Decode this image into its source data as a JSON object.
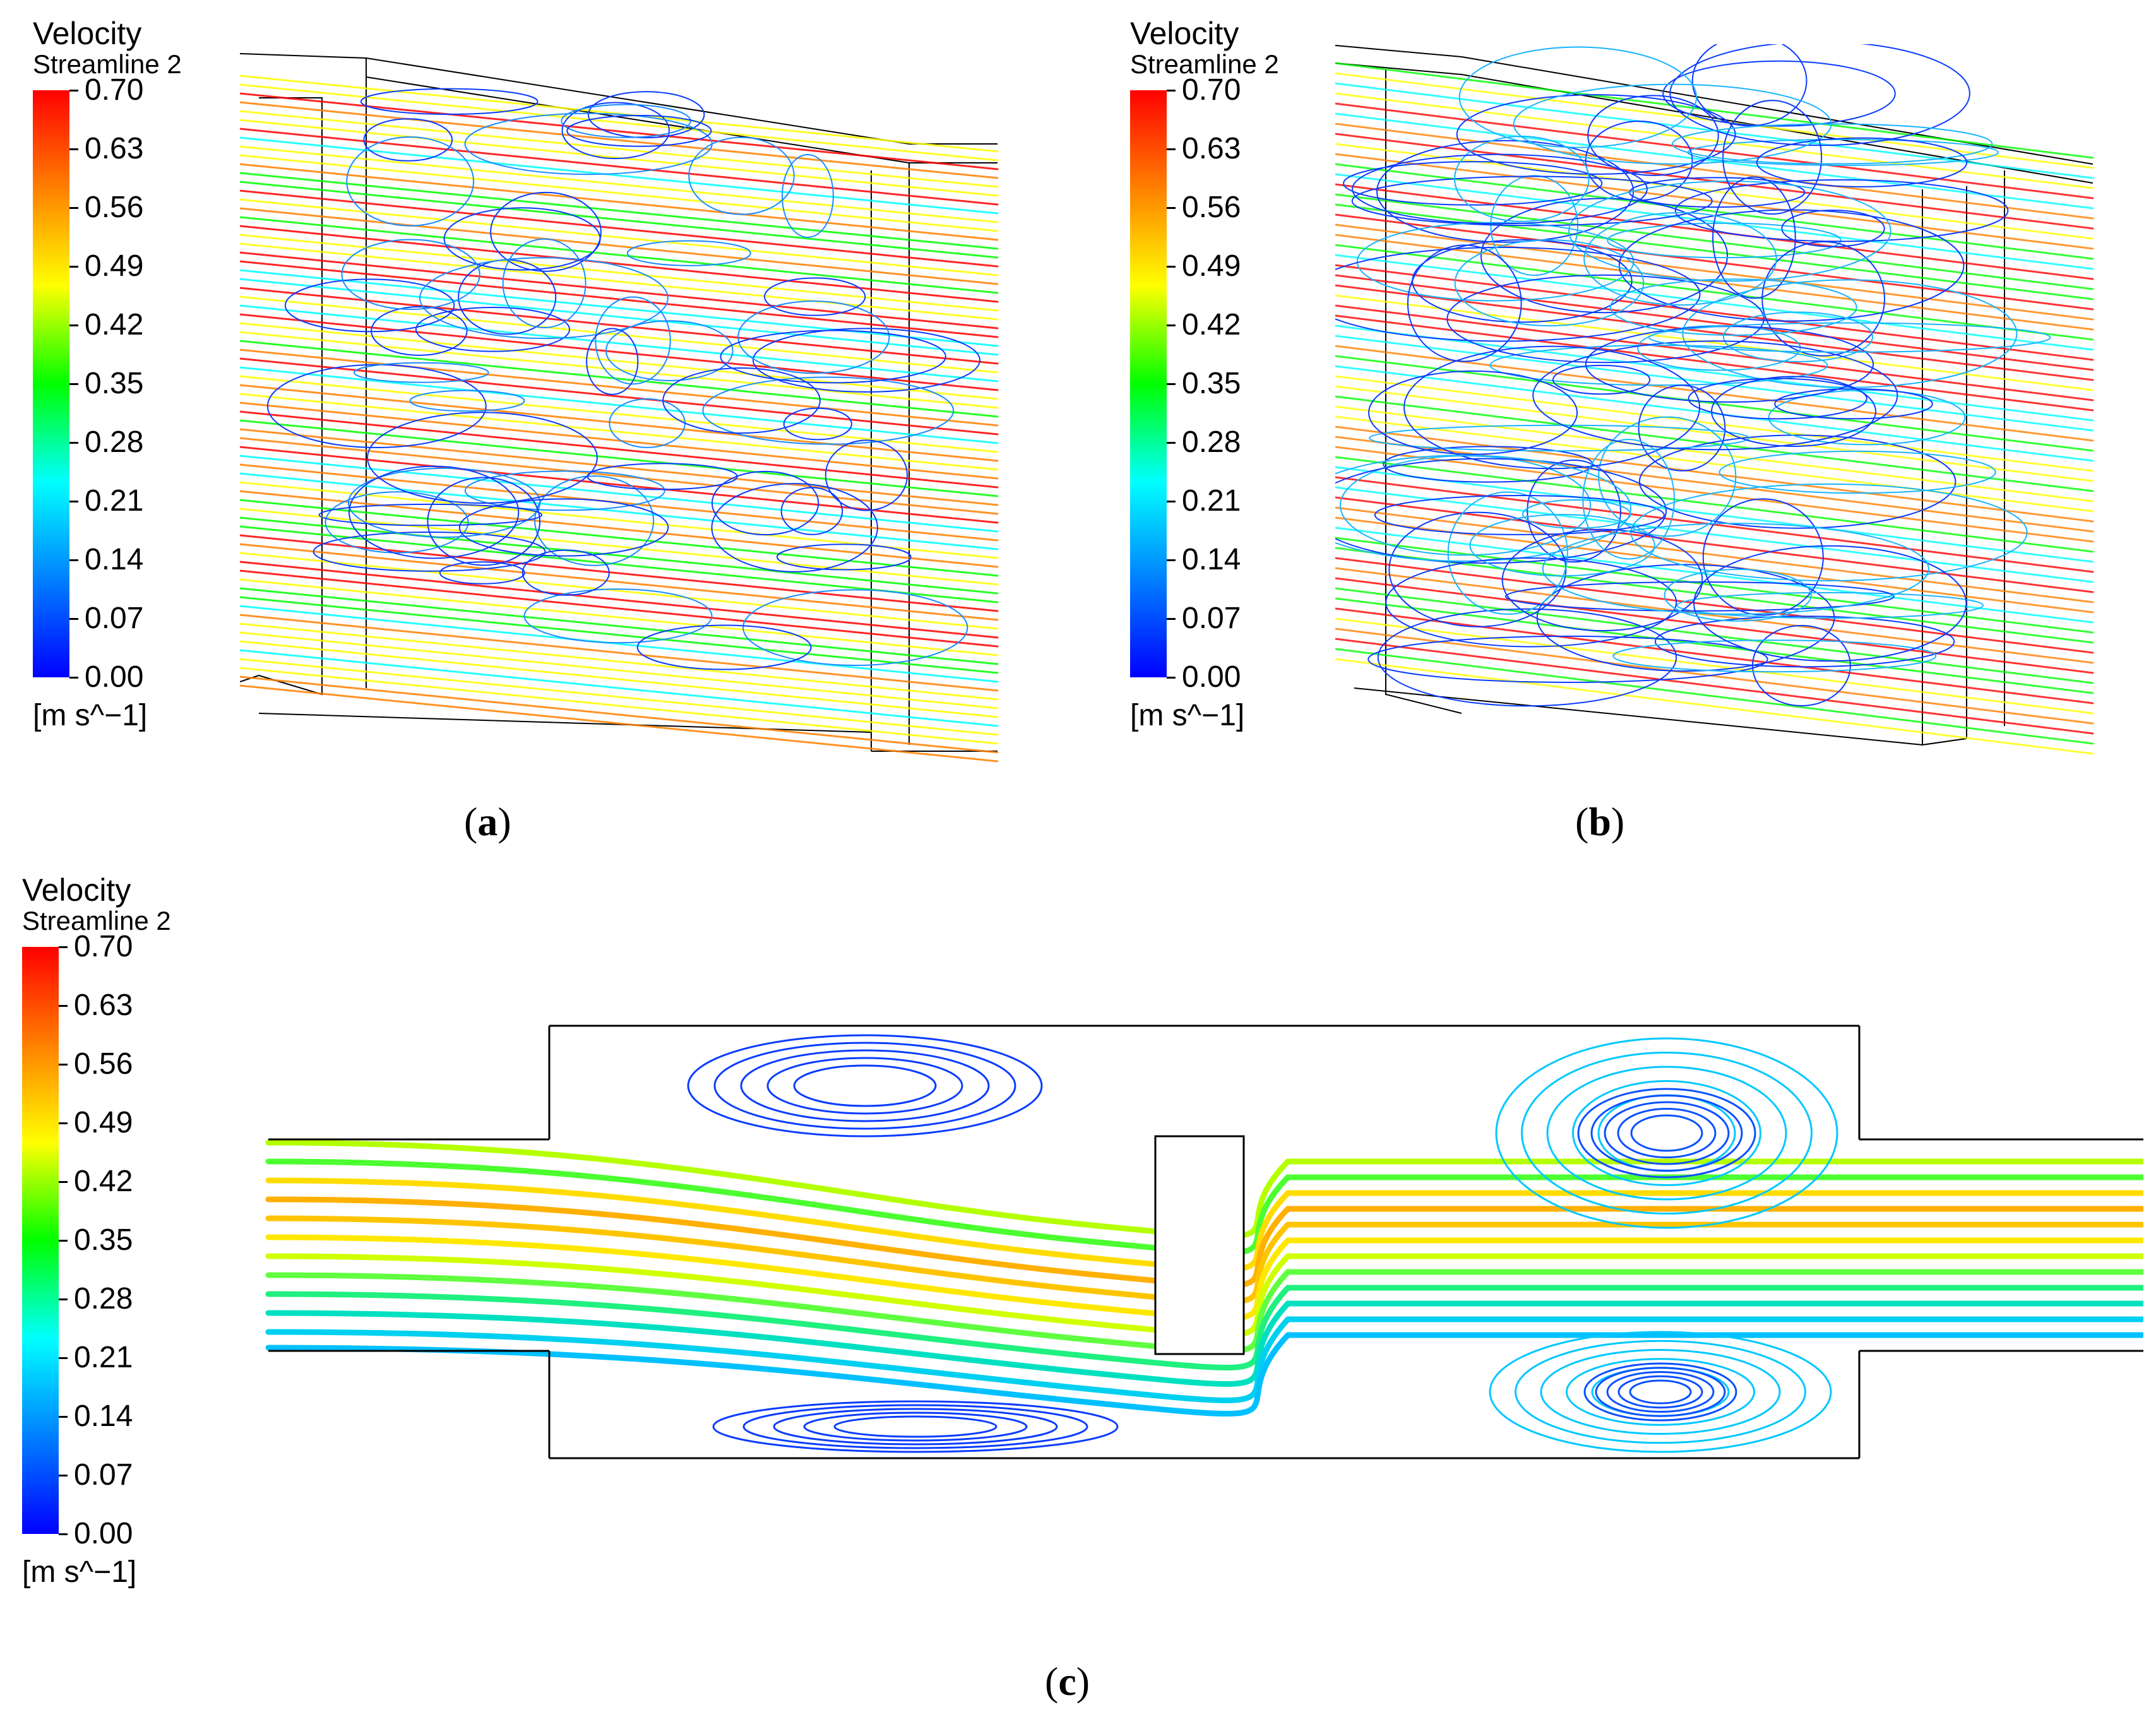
{
  "legend": {
    "title": "Velocity",
    "subtitle": "Streamline 2",
    "ticks": [
      "0.70",
      "0.63",
      "0.56",
      "0.49",
      "0.42",
      "0.35",
      "0.28",
      "0.21",
      "0.14",
      "0.07",
      "0.00"
    ],
    "unit": "[m s^−1]",
    "colormap": [
      "#ff0000",
      "#ff8000",
      "#ffff00",
      "#00ff00",
      "#00ffff",
      "#0080ff",
      "#0000ff"
    ]
  },
  "captions": {
    "a": "a",
    "b": "b",
    "c": "c"
  }
}
